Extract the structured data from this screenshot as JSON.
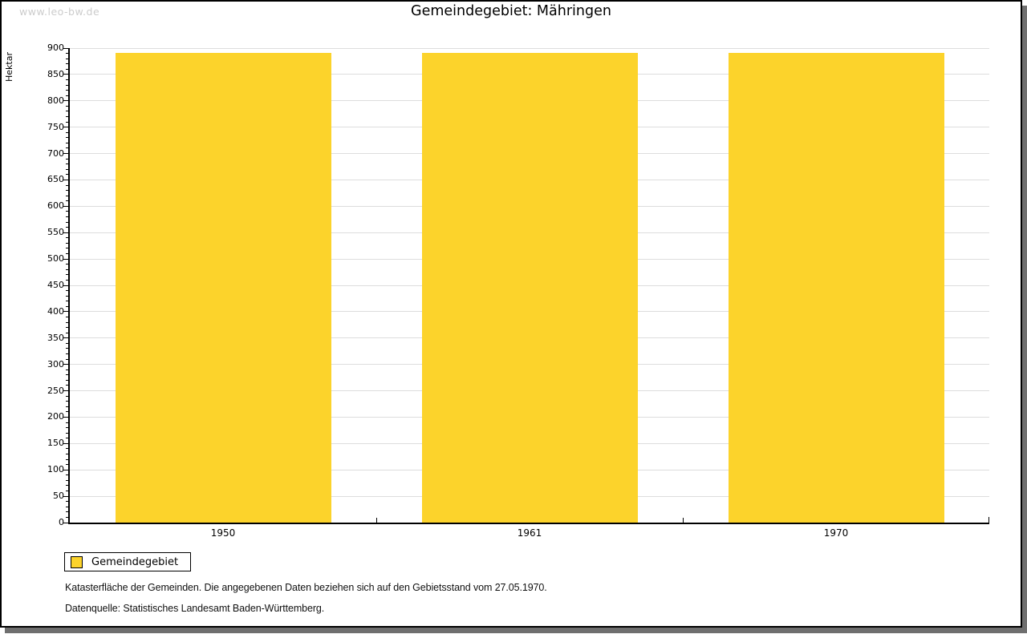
{
  "page": {
    "watermark": "www.leo-bw.de",
    "title": "Gemeindegebiet: Mähringen",
    "footer": {
      "line1": "Katasterfläche der Gemeinden. Die angegebenen Daten beziehen sich auf den Gebietsstand vom 27.05.1970.",
      "line2": "Datenquelle: Statistisches Landesamt Baden-Württemberg."
    }
  },
  "legend": {
    "label": "Gemeindegebiet"
  },
  "chart_data": {
    "type": "bar",
    "title": "Gemeindegebiet: Mähringen",
    "ylabel": "Hektar",
    "xlabel": "",
    "categories": [
      "1950",
      "1961",
      "1970"
    ],
    "series": [
      {
        "name": "Gemeindegebiet",
        "values": [
          891,
          891,
          891
        ]
      }
    ],
    "ylim": [
      0,
      900
    ],
    "ytick_step": 50,
    "yminor_step": 10,
    "grid": true,
    "legend_position": "bottom-left",
    "colors": {
      "bar": "#fcd32b",
      "grid": "#dddddd",
      "axis": "#000000",
      "watermark": "#cccccc"
    }
  }
}
